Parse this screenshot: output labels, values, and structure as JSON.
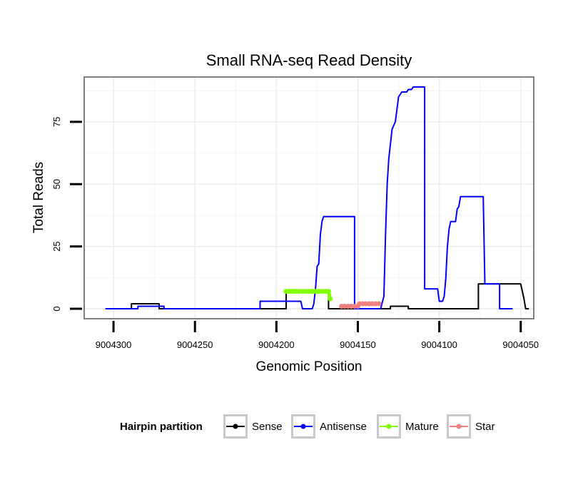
{
  "chart_data": {
    "type": "line",
    "title": "Small RNA-seq Read Density",
    "xlabel": "Genomic Position",
    "ylabel": "Total Reads",
    "x_reversed": true,
    "xlim": [
      9004318,
      9004042
    ],
    "ylim": [
      -4,
      93
    ],
    "xticks": [
      9004300,
      9004250,
      9004200,
      9004150,
      9004100,
      9004050
    ],
    "xtick_labels": [
      "9004300",
      "9004250",
      "9004200",
      "9004150",
      "9004100",
      "9004050"
    ],
    "yticks": [
      0,
      25,
      50,
      75
    ],
    "ytick_labels": [
      "0",
      "25",
      "50",
      "75"
    ],
    "grid": true,
    "legend": {
      "title": "Hairpin partition",
      "position": "bottom",
      "entries": [
        {
          "label": "Sense",
          "color": "#000000"
        },
        {
          "label": "Antisense",
          "color": "#0000ff"
        },
        {
          "label": "Mature",
          "color": "#7fff00"
        },
        {
          "label": "Star",
          "color": "#f08080"
        }
      ]
    },
    "series": [
      {
        "name": "Sense",
        "style": "line",
        "color": "#000000",
        "points": [
          [
            9004305,
            0
          ],
          [
            9004289,
            0
          ],
          [
            9004289,
            2
          ],
          [
            9004272,
            2
          ],
          [
            9004272,
            0
          ],
          [
            9004194,
            0
          ],
          [
            9004194,
            7
          ],
          [
            9004168,
            7
          ],
          [
            9004168,
            0
          ],
          [
            9004130,
            0
          ],
          [
            9004130,
            1
          ],
          [
            9004119,
            1
          ],
          [
            9004119,
            0
          ],
          [
            9004076,
            0
          ],
          [
            9004076,
            10
          ],
          [
            9004050,
            10
          ],
          [
            9004048,
            4
          ],
          [
            9004047,
            0
          ],
          [
            9004045,
            0
          ]
        ]
      },
      {
        "name": "Antisense",
        "style": "line",
        "color": "#0000ff",
        "points": [
          [
            9004305,
            0
          ],
          [
            9004285,
            0
          ],
          [
            9004285,
            1
          ],
          [
            9004269,
            1
          ],
          [
            9004269,
            0
          ],
          [
            9004210,
            0
          ],
          [
            9004210,
            3
          ],
          [
            9004195,
            3
          ],
          [
            9004185,
            3
          ],
          [
            9004184,
            0
          ],
          [
            9004178,
            0
          ],
          [
            9004177,
            2
          ],
          [
            9004176,
            8
          ],
          [
            9004175,
            17
          ],
          [
            9004174,
            18
          ],
          [
            9004173,
            30
          ],
          [
            9004172,
            35
          ],
          [
            9004171,
            37
          ],
          [
            9004152,
            37
          ],
          [
            9004152,
            0
          ],
          [
            9004136,
            0
          ],
          [
            9004134,
            5
          ],
          [
            9004133,
            30
          ],
          [
            9004132,
            50
          ],
          [
            9004131,
            60
          ],
          [
            9004129,
            72
          ],
          [
            9004127,
            75
          ],
          [
            9004126,
            80
          ],
          [
            9004125,
            85
          ],
          [
            9004124,
            86
          ],
          [
            9004123,
            87
          ],
          [
            9004120,
            87
          ],
          [
            9004119,
            88
          ],
          [
            9004117,
            88
          ],
          [
            9004116,
            89
          ],
          [
            9004109,
            89
          ],
          [
            9004109,
            8
          ],
          [
            9004101,
            8
          ],
          [
            9004100,
            3
          ],
          [
            9004098,
            3
          ],
          [
            9004097,
            5
          ],
          [
            9004096,
            12
          ],
          [
            9004095,
            25
          ],
          [
            9004094,
            32
          ],
          [
            9004093,
            35
          ],
          [
            9004090,
            35
          ],
          [
            9004089,
            40
          ],
          [
            9004088,
            41
          ],
          [
            9004087,
            45
          ],
          [
            9004073,
            45
          ],
          [
            9004072,
            10
          ],
          [
            9004063,
            10
          ],
          [
            9004063,
            0
          ],
          [
            9004055,
            0
          ]
        ]
      },
      {
        "name": "Mature",
        "style": "dots",
        "color": "#7fff00",
        "points": [
          [
            9004194,
            7
          ],
          [
            9004192,
            7
          ],
          [
            9004190,
            7
          ],
          [
            9004188,
            7
          ],
          [
            9004186,
            7
          ],
          [
            9004184,
            7
          ],
          [
            9004182,
            7
          ],
          [
            9004180,
            7
          ],
          [
            9004178,
            7
          ],
          [
            9004176,
            7
          ],
          [
            9004174,
            7
          ],
          [
            9004172,
            7
          ],
          [
            9004170,
            7
          ],
          [
            9004168,
            7
          ],
          [
            9004167,
            4
          ]
        ]
      },
      {
        "name": "Star",
        "style": "dots",
        "color": "#f08080",
        "points": [
          [
            9004160,
            1
          ],
          [
            9004158,
            1
          ],
          [
            9004156,
            1
          ],
          [
            9004154,
            1
          ],
          [
            9004152,
            1
          ],
          [
            9004150,
            1
          ],
          [
            9004149,
            2
          ],
          [
            9004147,
            2
          ],
          [
            9004145,
            2
          ],
          [
            9004143,
            2
          ],
          [
            9004141,
            2
          ],
          [
            9004139,
            2
          ],
          [
            9004137,
            2
          ]
        ]
      }
    ]
  }
}
